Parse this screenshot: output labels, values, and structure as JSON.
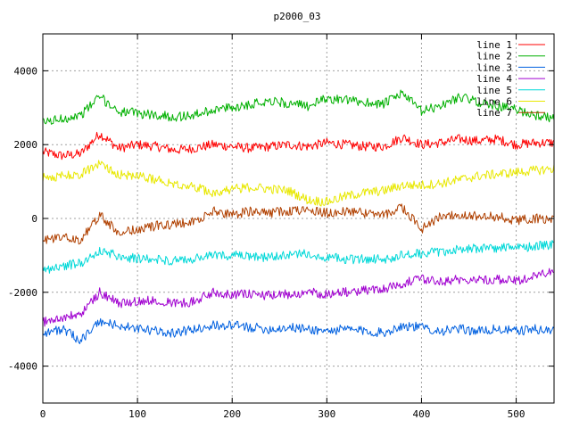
{
  "chart_data": {
    "type": "line",
    "title": "p2000_03",
    "xlabel": "",
    "ylabel": "",
    "xlim": [
      0,
      540
    ],
    "ylim": [
      -5000,
      5000
    ],
    "xticks": [
      0,
      100,
      200,
      300,
      400,
      500
    ],
    "yticks": [
      -4000,
      -2000,
      0,
      2000,
      4000
    ],
    "grid": true,
    "legend_position": "top-right",
    "series": [
      {
        "name": "line 1",
        "color": "#ff0000",
        "x": [
          0,
          20,
          40,
          60,
          80,
          100,
          120,
          140,
          160,
          180,
          200,
          220,
          240,
          260,
          280,
          300,
          320,
          340,
          360,
          380,
          400,
          420,
          440,
          460,
          480,
          500,
          520,
          540
        ],
        "y": [
          1800,
          1700,
          1750,
          2300,
          1900,
          2000,
          1950,
          1850,
          1900,
          2000,
          1950,
          1900,
          1950,
          2000,
          1950,
          2050,
          2000,
          1950,
          1950,
          2200,
          2000,
          2050,
          2150,
          2100,
          2150,
          2000,
          2050,
          2050
        ]
      },
      {
        "name": "line 2",
        "color": "#00b000",
        "x": [
          0,
          20,
          40,
          60,
          80,
          100,
          120,
          140,
          160,
          180,
          200,
          220,
          240,
          260,
          280,
          300,
          320,
          340,
          360,
          380,
          400,
          420,
          440,
          460,
          480,
          500,
          520,
          540
        ],
        "y": [
          2600,
          2700,
          2800,
          3300,
          2900,
          2850,
          2800,
          2750,
          2800,
          2950,
          3000,
          3100,
          3200,
          3100,
          3050,
          3250,
          3200,
          3150,
          3100,
          3400,
          2900,
          3050,
          3300,
          3150,
          3050,
          2950,
          2800,
          2700
        ]
      },
      {
        "name": "line 3",
        "color": "#0060e0",
        "x": [
          0,
          20,
          40,
          60,
          80,
          100,
          120,
          140,
          160,
          180,
          200,
          220,
          240,
          260,
          280,
          300,
          320,
          340,
          360,
          380,
          400,
          420,
          440,
          460,
          480,
          500,
          520,
          540
        ],
        "y": [
          -3100,
          -3000,
          -3300,
          -2800,
          -2900,
          -3000,
          -3050,
          -3100,
          -3000,
          -2900,
          -2900,
          -2950,
          -3000,
          -2950,
          -3000,
          -3050,
          -3000,
          -3050,
          -3100,
          -2900,
          -2950,
          -3050,
          -3000,
          -3050,
          -3000,
          -3050,
          -3000,
          -3050
        ]
      },
      {
        "name": "line 4",
        "color": "#a000d0",
        "x": [
          0,
          20,
          40,
          60,
          80,
          100,
          120,
          140,
          160,
          180,
          200,
          220,
          240,
          260,
          280,
          300,
          320,
          340,
          360,
          380,
          400,
          420,
          440,
          460,
          480,
          500,
          520,
          540
        ],
        "y": [
          -2800,
          -2700,
          -2600,
          -2000,
          -2300,
          -2250,
          -2200,
          -2300,
          -2250,
          -2000,
          -2050,
          -2050,
          -2100,
          -2050,
          -2000,
          -2050,
          -2000,
          -1950,
          -1900,
          -1750,
          -1650,
          -1700,
          -1650,
          -1650,
          -1650,
          -1700,
          -1550,
          -1450
        ]
      },
      {
        "name": "line 5",
        "color": "#00d8d8",
        "x": [
          0,
          20,
          40,
          60,
          80,
          100,
          120,
          140,
          160,
          180,
          200,
          220,
          240,
          260,
          280,
          300,
          320,
          340,
          360,
          380,
          400,
          420,
          440,
          460,
          480,
          500,
          520,
          540
        ],
        "y": [
          -1400,
          -1300,
          -1200,
          -900,
          -1000,
          -1100,
          -1100,
          -1150,
          -1100,
          -1000,
          -1000,
          -1050,
          -1050,
          -1000,
          -950,
          -1050,
          -1100,
          -1100,
          -1100,
          -1000,
          -950,
          -900,
          -850,
          -800,
          -800,
          -800,
          -750,
          -700
        ]
      },
      {
        "name": "line 6",
        "color": "#e8e800",
        "x": [
          0,
          20,
          40,
          60,
          80,
          100,
          120,
          140,
          160,
          180,
          200,
          220,
          240,
          260,
          280,
          300,
          320,
          340,
          360,
          380,
          400,
          420,
          440,
          460,
          480,
          500,
          520,
          540
        ],
        "y": [
          1100,
          1150,
          1200,
          1500,
          1200,
          1150,
          1050,
          950,
          850,
          700,
          800,
          850,
          800,
          750,
          500,
          450,
          600,
          700,
          750,
          900,
          900,
          950,
          1050,
          1150,
          1200,
          1250,
          1300,
          1350
        ]
      },
      {
        "name": "line 7",
        "color": "#b04000",
        "x": [
          0,
          20,
          40,
          60,
          80,
          100,
          120,
          140,
          160,
          180,
          200,
          220,
          240,
          260,
          280,
          300,
          320,
          340,
          360,
          380,
          400,
          420,
          440,
          460,
          480,
          500,
          520,
          540
        ],
        "y": [
          -600,
          -500,
          -600,
          100,
          -400,
          -300,
          -200,
          -150,
          -100,
          200,
          100,
          200,
          150,
          200,
          200,
          150,
          200,
          150,
          100,
          300,
          -300,
          50,
          100,
          50,
          50,
          -50,
          0,
          -50
        ]
      }
    ]
  }
}
